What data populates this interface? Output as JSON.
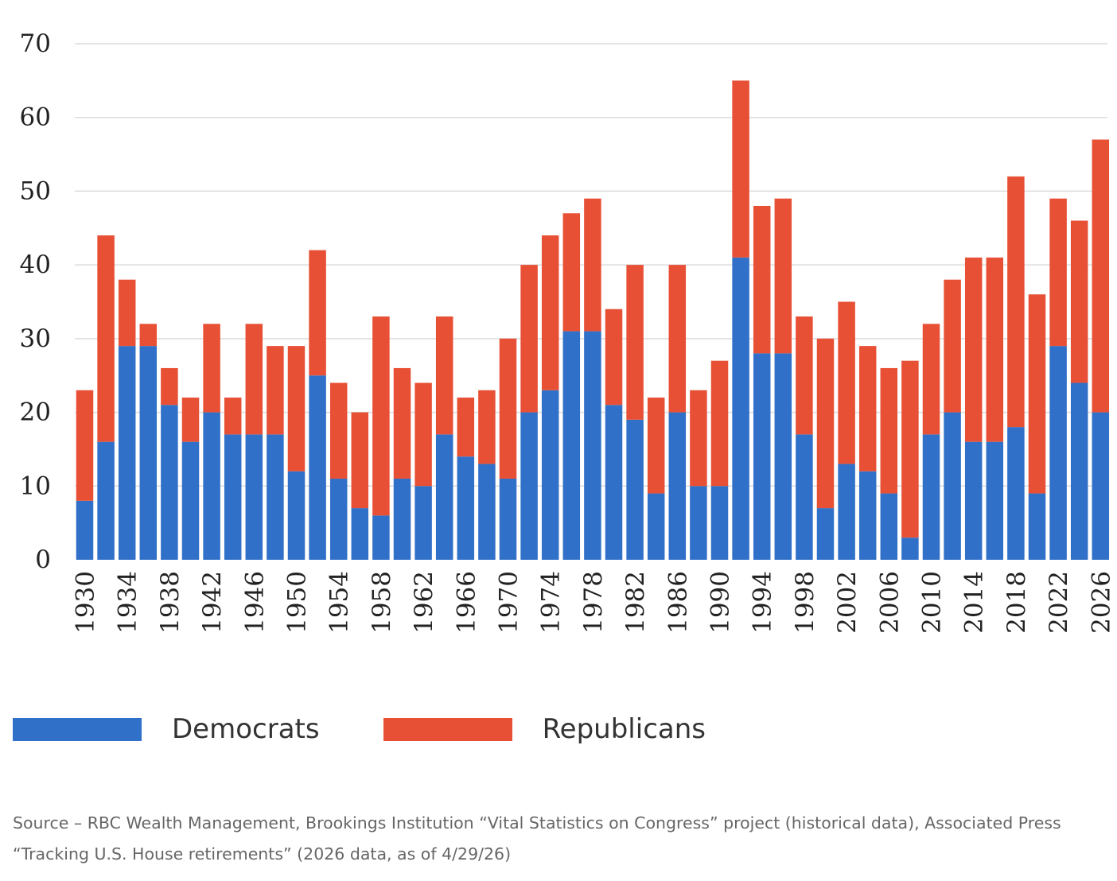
{
  "chart_data": {
    "type": "bar",
    "stacked": true,
    "categories": [
      "1930",
      "1932",
      "1934",
      "1936",
      "1938",
      "1940",
      "1942",
      "1944",
      "1946",
      "1948",
      "1950",
      "1952",
      "1954",
      "1956",
      "1958",
      "1960",
      "1962",
      "1964",
      "1966",
      "1968",
      "1970",
      "1972",
      "1974",
      "1976",
      "1978",
      "1980",
      "1982",
      "1984",
      "1986",
      "1988",
      "1990",
      "1992",
      "1994",
      "1996",
      "1998",
      "2000",
      "2002",
      "2004",
      "2006",
      "2008",
      "2010",
      "2012",
      "2014",
      "2016",
      "2018",
      "2020",
      "2022",
      "2024",
      "2026"
    ],
    "tick_labels": [
      "1930",
      "1934",
      "1938",
      "1942",
      "1946",
      "1950",
      "1954",
      "1958",
      "1962",
      "1966",
      "1970",
      "1974",
      "1978",
      "1982",
      "1986",
      "1990",
      "1994",
      "1998",
      "2002",
      "2006",
      "2010",
      "2014",
      "2018",
      "2022",
      "2026"
    ],
    "series": [
      {
        "name": "Democrats",
        "color": "#3070c8",
        "values": [
          8,
          16,
          29,
          29,
          21,
          16,
          20,
          17,
          17,
          17,
          12,
          25,
          11,
          7,
          6,
          11,
          10,
          17,
          14,
          13,
          11,
          20,
          23,
          31,
          31,
          21,
          19,
          9,
          20,
          10,
          10,
          41,
          28,
          28,
          17,
          7,
          13,
          12,
          9,
          3,
          17,
          20,
          16,
          16,
          18,
          9,
          29,
          24,
          20
        ]
      },
      {
        "name": "Republicans",
        "color": "#e85035",
        "values": [
          15,
          28,
          9,
          3,
          5,
          6,
          12,
          5,
          15,
          12,
          17,
          17,
          13,
          13,
          27,
          15,
          14,
          16,
          8,
          10,
          19,
          20,
          21,
          16,
          18,
          13,
          21,
          13,
          20,
          13,
          17,
          24,
          20,
          21,
          16,
          23,
          22,
          17,
          17,
          24,
          15,
          18,
          25,
          25,
          34,
          27,
          20,
          22,
          37
        ]
      }
    ],
    "ylim": [
      0,
      70
    ],
    "yticks": [
      0,
      10,
      20,
      30,
      40,
      50,
      60,
      70
    ],
    "grid": true,
    "legend_position": "bottom-left"
  },
  "legend": {
    "items": [
      {
        "label": "Democrats",
        "color": "#3070c8"
      },
      {
        "label": "Republicans",
        "color": "#e85035"
      }
    ]
  },
  "source": {
    "text": "Source – RBC Wealth Management, Brookings Institution “Vital Statistics on Congress” project (historical data), Associated Press “Tracking U.S. House retirements” (2026 data, as of 4/29/26)"
  }
}
